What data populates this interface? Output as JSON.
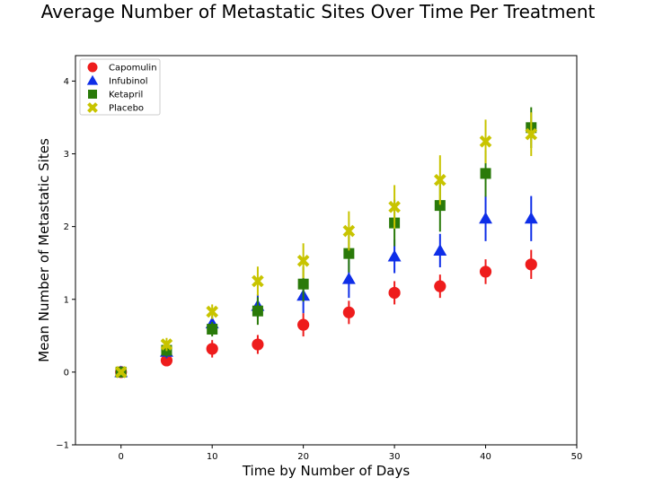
{
  "chart_data": {
    "type": "scatter",
    "title": "Average Number of Metastatic Sites Over Time Per Treatment",
    "xlabel": "Time by Number of Days",
    "ylabel": "Mean Number of Metastatic Sites",
    "xlim": [
      -5,
      50
    ],
    "ylim": [
      -1,
      4.35
    ],
    "xticks": [
      0,
      10,
      20,
      30,
      40,
      50
    ],
    "yticks": [
      -1,
      0,
      1,
      2,
      3,
      4
    ],
    "grid": false,
    "legend_position": "top-left",
    "x": [
      0,
      5,
      10,
      15,
      20,
      25,
      30,
      35,
      40,
      45
    ],
    "series": [
      {
        "name": "Capomulin",
        "color": "#ee1c1c",
        "marker": "circle",
        "values": [
          0.0,
          0.16,
          0.32,
          0.38,
          0.65,
          0.82,
          1.09,
          1.18,
          1.38,
          1.48
        ],
        "errors": [
          0.0,
          0.07,
          0.12,
          0.13,
          0.16,
          0.16,
          0.16,
          0.16,
          0.17,
          0.2
        ]
      },
      {
        "name": "Infubinol",
        "color": "#0e2ee8",
        "marker": "triangle",
        "values": [
          0.0,
          0.28,
          0.67,
          0.91,
          1.05,
          1.28,
          1.59,
          1.67,
          2.11,
          2.11
        ],
        "errors": [
          0.0,
          0.09,
          0.1,
          0.16,
          0.24,
          0.26,
          0.23,
          0.23,
          0.31,
          0.31
        ]
      },
      {
        "name": "Ketapril",
        "color": "#2a7a0a",
        "marker": "square",
        "values": [
          0.0,
          0.3,
          0.59,
          0.84,
          1.21,
          1.63,
          2.05,
          2.29,
          2.73,
          3.36
        ],
        "errors": [
          0.0,
          0.09,
          0.1,
          0.19,
          0.24,
          0.26,
          0.32,
          0.36,
          0.32,
          0.28
        ]
      },
      {
        "name": "Placebo",
        "color": "#c8c400",
        "marker": "x",
        "values": [
          0.0,
          0.38,
          0.83,
          1.25,
          1.53,
          1.94,
          2.27,
          2.64,
          3.17,
          3.27
        ],
        "errors": [
          0.0,
          0.09,
          0.1,
          0.2,
          0.24,
          0.27,
          0.3,
          0.34,
          0.3,
          0.3
        ]
      }
    ]
  }
}
